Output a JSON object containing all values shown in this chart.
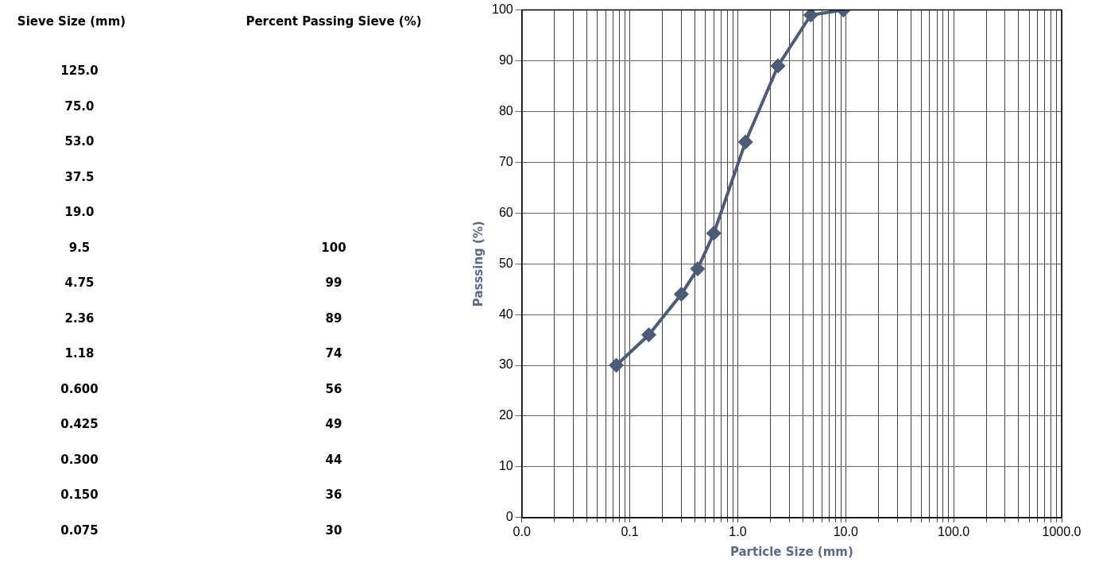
{
  "chart_data": [
    {
      "type": "other",
      "xlabel": "Sieve Size (mm)",
      "ylabel": "Percent Passing Sieve (%)",
      "categories": [
        "125.0",
        "75.0",
        "53.0",
        "37.5",
        "19.0",
        "9.5",
        "4.75",
        "2.36",
        "1.18",
        "0.600",
        "0.425",
        "0.300",
        "0.150",
        "0.075"
      ],
      "annotations": [
        "100",
        "99",
        "89",
        "74",
        "56",
        "49",
        "44",
        "36",
        "30"
      ]
    },
    {
      "type": "line",
      "xlabel": "Particle Size (mm)",
      "ylabel": "Passsing (%)",
      "log": "x",
      "grid": true,
      "marker": "diamond",
      "line_style": "solid",
      "legend": false,
      "series": [
        {
          "color": "#4b5b78",
          "x": [
            0.075,
            0.15,
            0.3,
            0.425,
            0.6,
            1.18,
            2.36,
            4.75,
            9.5
          ],
          "values": [
            30,
            36,
            44,
            49,
            56,
            74,
            89,
            99,
            100
          ]
        }
      ],
      "xlim": [
        0.01,
        1000
      ],
      "xticks": [
        {
          "value": 0.01,
          "label": "0.0"
        },
        {
          "value": 0.02,
          "label": null
        },
        {
          "value": 0.03,
          "label": null
        },
        {
          "value": 0.04,
          "label": null
        },
        {
          "value": 0.05,
          "label": null
        },
        {
          "value": 0.06,
          "label": null
        },
        {
          "value": 0.07,
          "label": null
        },
        {
          "value": 0.08,
          "label": null
        },
        {
          "value": 0.09,
          "label": null
        },
        {
          "value": 0.1,
          "label": "0.1"
        },
        {
          "value": 0.2,
          "label": null
        },
        {
          "value": 0.3,
          "label": null
        },
        {
          "value": 0.4,
          "label": null
        },
        {
          "value": 0.5,
          "label": null
        },
        {
          "value": 0.6,
          "label": null
        },
        {
          "value": 0.7,
          "label": null
        },
        {
          "value": 0.8,
          "label": null
        },
        {
          "value": 0.9,
          "label": null
        },
        {
          "value": 1,
          "label": "1.0"
        },
        {
          "value": 2,
          "label": null
        },
        {
          "value": 3,
          "label": null
        },
        {
          "value": 4,
          "label": null
        },
        {
          "value": 5,
          "label": null
        },
        {
          "value": 6,
          "label": null
        },
        {
          "value": 7,
          "label": null
        },
        {
          "value": 8,
          "label": null
        },
        {
          "value": 9,
          "label": null
        },
        {
          "value": 10,
          "label": "10.0"
        },
        {
          "value": 20,
          "label": null
        },
        {
          "value": 30,
          "label": null
        },
        {
          "value": 40,
          "label": null
        },
        {
          "value": 50,
          "label": null
        },
        {
          "value": 60,
          "label": null
        },
        {
          "value": 70,
          "label": null
        },
        {
          "value": 80,
          "label": null
        },
        {
          "value": 90,
          "label": null
        },
        {
          "value": 100,
          "label": "100.0"
        },
        {
          "value": 200,
          "label": null
        },
        {
          "value": 300,
          "label": null
        },
        {
          "value": 400,
          "label": null
        },
        {
          "value": 500,
          "label": null
        },
        {
          "value": 600,
          "label": null
        },
        {
          "value": 700,
          "label": null
        },
        {
          "value": 800,
          "label": null
        },
        {
          "value": 900,
          "label": null
        },
        {
          "value": 1000,
          "label": "1000.0"
        }
      ],
      "ylim": [
        0,
        100
      ],
      "yticks": [
        0,
        10,
        20,
        30,
        40,
        50,
        60,
        70,
        80,
        90,
        100
      ]
    }
  ]
}
